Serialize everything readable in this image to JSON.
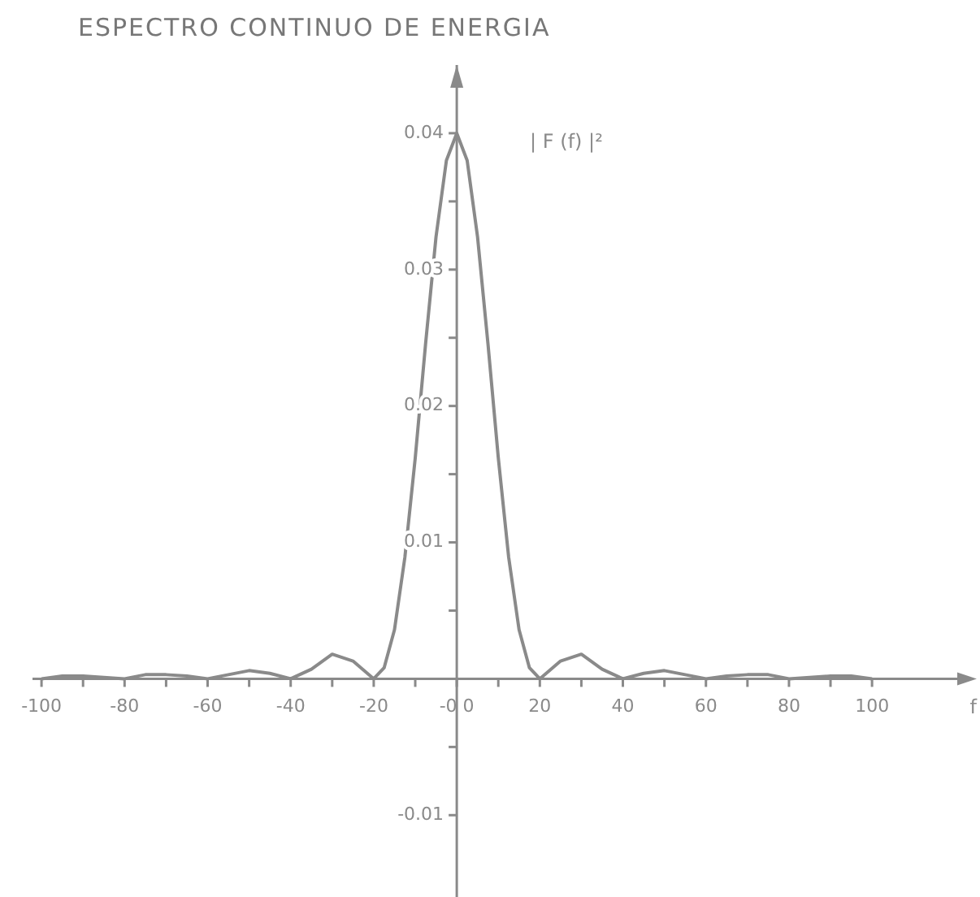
{
  "chart_data": {
    "type": "line",
    "title": "ESPECTRO CONTINUO DE ENERGIA",
    "xlabel": "f",
    "ylabel": "| F (f) |²",
    "x": [
      -100,
      -95,
      -90,
      -85,
      -80,
      -75,
      -70,
      -65,
      -60,
      -55,
      -50,
      -45,
      -40,
      -35,
      -30,
      -25,
      -20,
      -17.5,
      -15,
      -12.5,
      -10,
      -7.5,
      -5,
      -2.5,
      0,
      2.5,
      5,
      7.5,
      10,
      12.5,
      15,
      17.5,
      20,
      25,
      30,
      35,
      40,
      45,
      50,
      55,
      60,
      65,
      70,
      75,
      80,
      85,
      90,
      95,
      100
    ],
    "series": [
      {
        "color": "#8a8a8a",
        "values": [
          0,
          0.0002,
          0.0002,
          0.0001,
          0,
          0.0003,
          0.0003,
          0.0002,
          0,
          0.0003,
          0.0006,
          0.0004,
          0,
          0.0007,
          0.0018,
          0.0013,
          0,
          0.0008,
          0.0036,
          0.0089,
          0.0162,
          0.0246,
          0.0324,
          0.038,
          0.04,
          0.038,
          0.0324,
          0.0246,
          0.0162,
          0.0089,
          0.0036,
          0.0008,
          0,
          0.0013,
          0.0018,
          0.0007,
          0,
          0.0004,
          0.0006,
          0.0003,
          0,
          0.0002,
          0.0003,
          0.0003,
          0,
          0.0001,
          0.0002,
          0.0002,
          0
        ]
      }
    ],
    "xlim": [
      -110,
      126
    ],
    "ylim": [
      -0.016,
      0.045
    ],
    "xticks": [
      -100,
      {
        "value": -90,
        "label": null
      },
      -80,
      {
        "value": -70,
        "label": null
      },
      -60,
      {
        "value": -50,
        "label": null
      },
      -40,
      {
        "value": -30,
        "label": null
      },
      -20,
      {
        "value": -10,
        "label": null
      },
      {
        "value": 0,
        "label": "-0 0"
      },
      {
        "value": 10,
        "label": null
      },
      20,
      {
        "value": 30,
        "label": null
      },
      40,
      {
        "value": 50,
        "label": null
      },
      60,
      {
        "value": 70,
        "label": null
      },
      80,
      {
        "value": 90,
        "label": null
      },
      100
    ],
    "yticks": [
      -0.01,
      {
        "value": -0.005,
        "label": null
      },
      {
        "value": 0.005,
        "label": null
      },
      0.01,
      {
        "value": 0.015,
        "label": null
      },
      0.02,
      {
        "value": 0.025,
        "label": null
      },
      0.03,
      {
        "value": 0.035,
        "label": null
      },
      0.04
    ],
    "grid": false,
    "legend": false,
    "marker": "none",
    "line_style": "solid"
  }
}
